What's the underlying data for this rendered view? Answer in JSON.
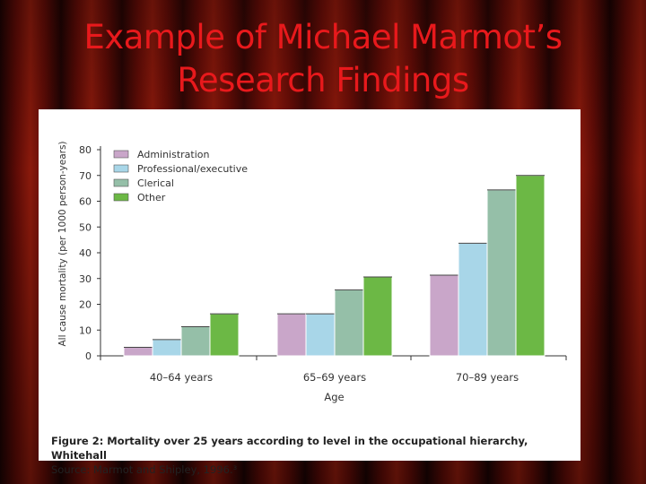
{
  "slide": {
    "title_line1": "Example of Michael Marmot’s",
    "title_line2": "Research Findings"
  },
  "caption": {
    "title": "Figure 2: Mortality over 25 years according to level in the occupational hierarchy, Whitehall",
    "source": "Source: Marmot and Shipley, 1996.³"
  },
  "chart_data": {
    "type": "bar",
    "categories": [
      "40–64 years",
      "65–69 years",
      "70–89 years"
    ],
    "series": [
      {
        "name": "Administration",
        "color": "#c9a6c9",
        "values": [
          3.3,
          16.3,
          31.3
        ]
      },
      {
        "name": "Professional/executive",
        "color": "#a8d6e8",
        "values": [
          6.3,
          16.3,
          43.7
        ]
      },
      {
        "name": "Clerical",
        "color": "#95bfa8",
        "values": [
          11.3,
          25.6,
          64.4
        ]
      },
      {
        "name": "Other",
        "color": "#6cb845",
        "values": [
          16.3,
          30.6,
          70
        ]
      }
    ],
    "xlabel": "Age",
    "ylabel": "All cause mortality (per 1000 person-years)",
    "ylim": [
      0,
      80
    ],
    "yticks": [
      0,
      10,
      20,
      30,
      40,
      50,
      60,
      70,
      80
    ],
    "legend_position": "top-left",
    "grid": false
  }
}
